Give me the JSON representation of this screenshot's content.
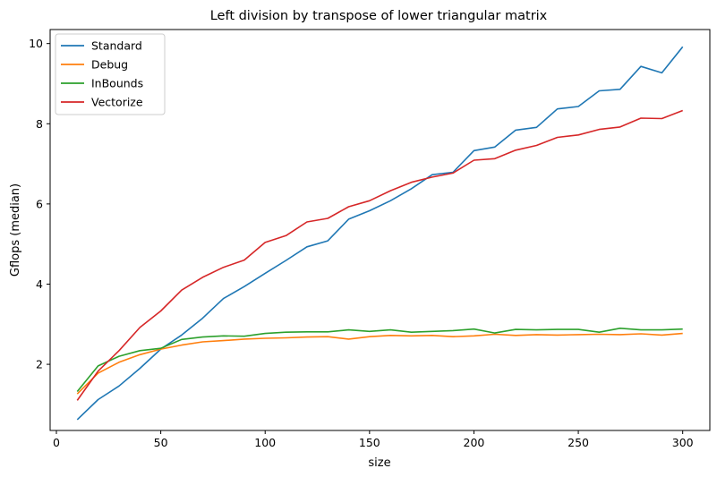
{
  "chart_data": {
    "type": "line",
    "title": "Left division by transpose of lower triangular matrix",
    "xlabel": "size",
    "ylabel": "Gflops (median)",
    "xlim": [
      -3,
      313
    ],
    "ylim": [
      0.35,
      10.35
    ],
    "xticks": [
      0,
      50,
      100,
      150,
      200,
      250,
      300
    ],
    "yticks": [
      2,
      4,
      6,
      8,
      10
    ],
    "grid": false,
    "legend_position": "top-left",
    "x": [
      10,
      20,
      30,
      40,
      50,
      60,
      70,
      80,
      90,
      100,
      110,
      120,
      130,
      140,
      150,
      160,
      170,
      180,
      190,
      200,
      210,
      220,
      230,
      240,
      250,
      260,
      270,
      280,
      290,
      300
    ],
    "series": [
      {
        "name": "Standard",
        "color": "#1f77b4",
        "values": [
          0.62,
          1.12,
          1.46,
          1.9,
          2.38,
          2.73,
          3.15,
          3.64,
          3.94,
          4.27,
          4.59,
          4.93,
          5.08,
          5.62,
          5.83,
          6.08,
          6.38,
          6.73,
          6.79,
          7.33,
          7.42,
          7.84,
          7.91,
          8.37,
          8.43,
          8.82,
          8.86,
          9.43,
          9.27,
          9.92
        ]
      },
      {
        "name": "Debug",
        "color": "#ff7f0e",
        "values": [
          1.26,
          1.78,
          2.05,
          2.24,
          2.38,
          2.48,
          2.56,
          2.59,
          2.63,
          2.65,
          2.66,
          2.68,
          2.69,
          2.63,
          2.69,
          2.72,
          2.71,
          2.72,
          2.69,
          2.71,
          2.75,
          2.72,
          2.74,
          2.73,
          2.74,
          2.75,
          2.74,
          2.76,
          2.73,
          2.77
        ]
      },
      {
        "name": "InBounds",
        "color": "#2ca02c",
        "values": [
          1.32,
          1.96,
          2.2,
          2.34,
          2.4,
          2.62,
          2.68,
          2.71,
          2.7,
          2.77,
          2.8,
          2.81,
          2.81,
          2.86,
          2.82,
          2.86,
          2.8,
          2.82,
          2.84,
          2.88,
          2.78,
          2.87,
          2.86,
          2.87,
          2.87,
          2.8,
          2.9,
          2.86,
          2.86,
          2.88
        ]
      },
      {
        "name": "Vectorize",
        "color": "#d62728",
        "values": [
          1.1,
          1.83,
          2.34,
          2.92,
          3.33,
          3.85,
          4.17,
          4.42,
          4.6,
          5.04,
          5.21,
          5.55,
          5.64,
          5.93,
          6.08,
          6.33,
          6.54,
          6.67,
          6.77,
          7.09,
          7.13,
          7.34,
          7.46,
          7.66,
          7.72,
          7.86,
          7.92,
          8.14,
          8.13,
          8.33
        ]
      }
    ]
  }
}
